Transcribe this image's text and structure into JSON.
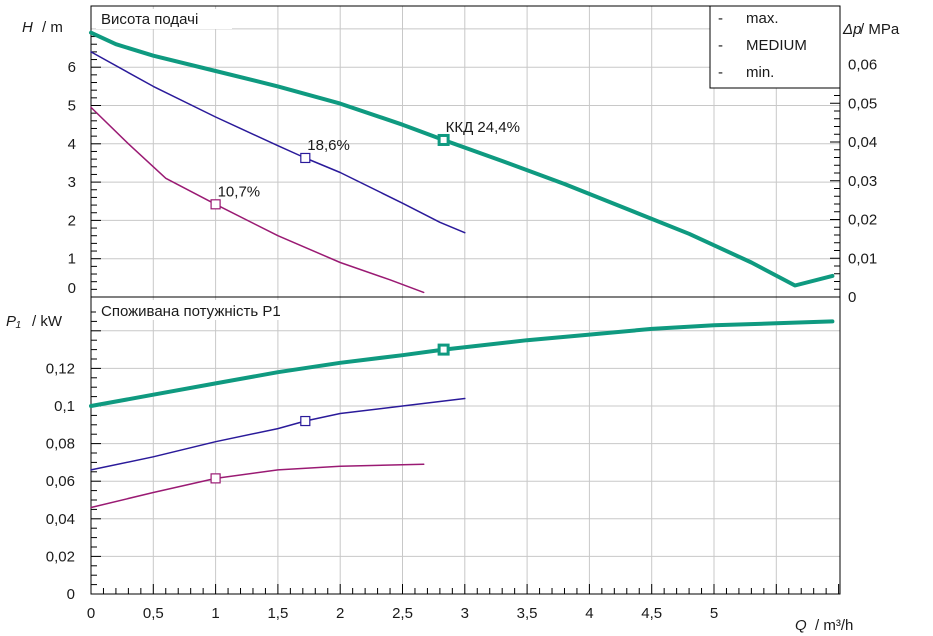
{
  "colors": {
    "max": "#0f9a80",
    "medium": "#2a1a9a",
    "min": "#9a1a73"
  },
  "chart_data": [
    {
      "type": "line",
      "title": "Висота подачі",
      "ylabel_symbol": "H",
      "ylabel_unit": "/ m",
      "right_label_symbol": "Δp",
      "right_label_unit": "/ MPa",
      "xlim": [
        0,
        6
      ],
      "ylim": [
        0,
        7
      ],
      "y_ticks": [
        "0",
        "1",
        "2",
        "3",
        "4",
        "5",
        "6"
      ],
      "y_right_ticks": [
        "0",
        "0,01",
        "0,02",
        "0,03",
        "0,04",
        "0,05",
        "0,06"
      ],
      "legend": {
        "placement": "top-right",
        "entries": [
          {
            "dash": "-",
            "label": "max.",
            "color_key": "max"
          },
          {
            "dash": "-",
            "label": "MEDIUM",
            "color_key": "medium"
          },
          {
            "dash": "-",
            "label": "min.",
            "color_key": "min"
          }
        ]
      },
      "series": [
        {
          "name": "max.",
          "color_key": "max",
          "width": 4,
          "x": [
            0,
            0.2,
            0.5,
            1.0,
            1.5,
            2.0,
            2.5,
            2.83,
            3.3,
            3.8,
            4.3,
            4.8,
            5.3,
            5.65,
            5.95
          ],
          "y": [
            6.9,
            6.6,
            6.3,
            5.9,
            5.5,
            5.05,
            4.5,
            4.1,
            3.55,
            2.95,
            2.3,
            1.65,
            0.9,
            0.3,
            0.55
          ],
          "marker": {
            "x": 2.83,
            "y": 4.1,
            "label": "ККД  24,4%"
          }
        },
        {
          "name": "MEDIUM",
          "color_key": "medium",
          "width": 1.5,
          "x": [
            0,
            0.5,
            1.0,
            1.5,
            1.72,
            2.0,
            2.5,
            2.8,
            3.0
          ],
          "y": [
            6.4,
            5.5,
            4.7,
            3.95,
            3.63,
            3.25,
            2.45,
            1.95,
            1.68
          ],
          "marker": {
            "x": 1.72,
            "y": 3.63,
            "label": "18,6%"
          }
        },
        {
          "name": "min.",
          "color_key": "min",
          "width": 1.5,
          "x": [
            0,
            0.3,
            0.6,
            1.0,
            1.5,
            2.0,
            2.4,
            2.67
          ],
          "y": [
            4.95,
            4.0,
            3.1,
            2.42,
            1.6,
            0.9,
            0.45,
            0.12
          ],
          "marker": {
            "x": 1.0,
            "y": 2.42,
            "label": "10,7%"
          }
        }
      ]
    },
    {
      "type": "line",
      "title": "Споживана потужність P1",
      "ylabel_symbol": "P₁",
      "ylabel_unit": "/ kW",
      "xlabel_symbol": "Q",
      "xlabel_unit": "/ m³/h",
      "xlim": [
        0,
        6
      ],
      "ylim": [
        0,
        0.15
      ],
      "x_ticks": [
        "0",
        "0,5",
        "1",
        "1,5",
        "2",
        "2,5",
        "3",
        "3,5",
        "4",
        "4,5",
        "5"
      ],
      "y_ticks": [
        "0",
        "0,02",
        "0,04",
        "0,06",
        "0,08",
        "0,1",
        "0,12"
      ],
      "series": [
        {
          "name": "max.",
          "color_key": "max",
          "width": 4,
          "x": [
            0,
            0.5,
            1.0,
            1.5,
            2.0,
            2.5,
            2.83,
            3.5,
            4.0,
            4.5,
            5.0,
            5.5,
            5.95
          ],
          "y": [
            0.1,
            0.106,
            0.112,
            0.118,
            0.123,
            0.127,
            0.13,
            0.135,
            0.138,
            0.141,
            0.143,
            0.144,
            0.145
          ],
          "marker": {
            "x": 2.83,
            "y": 0.13
          }
        },
        {
          "name": "MEDIUM",
          "color_key": "medium",
          "width": 1.5,
          "x": [
            0,
            0.5,
            1.0,
            1.5,
            1.72,
            2.0,
            2.5,
            3.0
          ],
          "y": [
            0.066,
            0.073,
            0.081,
            0.088,
            0.092,
            0.096,
            0.1,
            0.104
          ],
          "marker": {
            "x": 1.72,
            "y": 0.092
          }
        },
        {
          "name": "min.",
          "color_key": "min",
          "width": 1.5,
          "x": [
            0,
            0.5,
            1.0,
            1.5,
            2.0,
            2.67
          ],
          "y": [
            0.046,
            0.054,
            0.0615,
            0.066,
            0.068,
            0.069
          ],
          "marker": {
            "x": 1.0,
            "y": 0.0615
          }
        }
      ]
    }
  ]
}
